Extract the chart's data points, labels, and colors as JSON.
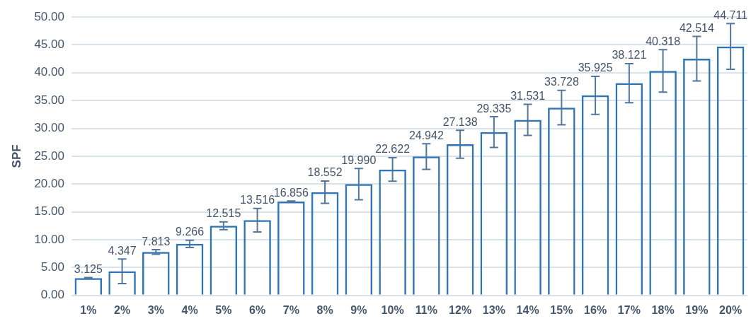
{
  "chart_data": {
    "type": "bar",
    "ylabel": "SPF",
    "categories": [
      "1%",
      "2%",
      "3%",
      "4%",
      "5%",
      "6%",
      "7%",
      "8%",
      "9%",
      "10%",
      "11%",
      "12%",
      "13%",
      "14%",
      "15%",
      "16%",
      "17%",
      "18%",
      "19%",
      "20%"
    ],
    "values": [
      3.125,
      4.347,
      7.813,
      9.266,
      12.515,
      13.516,
      16.856,
      18.552,
      19.99,
      22.622,
      24.942,
      27.138,
      29.335,
      31.531,
      33.728,
      35.925,
      38.121,
      40.318,
      42.514,
      44.711
    ],
    "errors": [
      0.1,
      2.2,
      0.4,
      0.65,
      0.7,
      2.1,
      0.1,
      2.0,
      2.8,
      2.1,
      2.3,
      2.5,
      2.75,
      2.8,
      3.1,
      3.4,
      3.5,
      3.8,
      4.0,
      4.1
    ],
    "value_labels": [
      "3.125",
      "4.347",
      "7.813",
      "9.266",
      "12.515",
      "13.516",
      "16.856",
      "18.552",
      "19.990",
      "22.622",
      "24.942",
      "27.138",
      "29.335",
      "31.531",
      "33.728",
      "35.925",
      "38.121",
      "40.318",
      "42.514",
      "44.711"
    ],
    "color": "#2e75b6",
    "ylim": [
      0,
      50
    ],
    "yticks": [
      {
        "value": 0,
        "label": "0.00"
      },
      {
        "value": 5,
        "label": "5.00"
      },
      {
        "value": 10,
        "label": "10.00"
      },
      {
        "value": 15,
        "label": "15.00"
      },
      {
        "value": 20,
        "label": "20.00"
      },
      {
        "value": 25,
        "label": "25.00"
      },
      {
        "value": 30,
        "label": "30.00"
      },
      {
        "value": 35,
        "label": "35.00"
      },
      {
        "value": 40,
        "label": "40.00"
      },
      {
        "value": 45,
        "label": "45.00"
      },
      {
        "value": 50,
        "label": "50.00"
      }
    ],
    "grid": "y"
  }
}
